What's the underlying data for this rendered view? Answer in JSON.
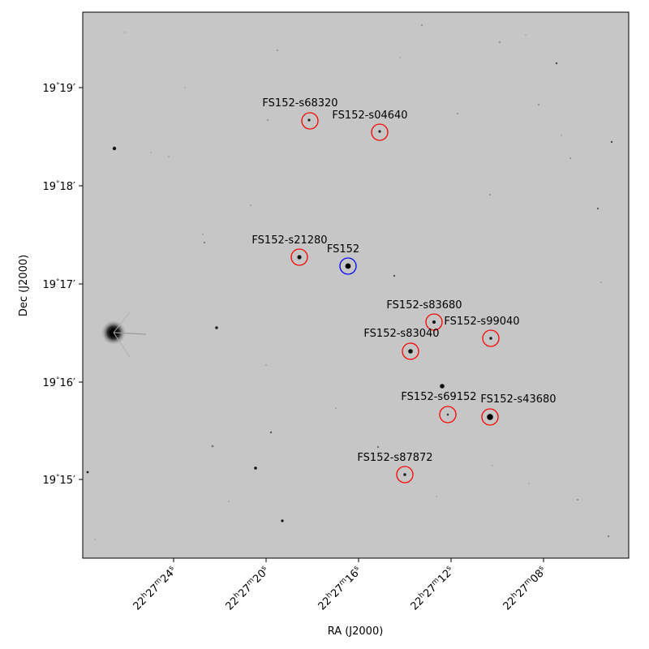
{
  "axes": {
    "xlabel": "RA (J2000)",
    "ylabel": "Dec (J2000)"
  },
  "y_ticks": [
    {
      "deg": "19",
      "min": "19"
    },
    {
      "deg": "19",
      "min": "18"
    },
    {
      "deg": "19",
      "min": "17"
    },
    {
      "deg": "19",
      "min": "16"
    },
    {
      "deg": "19",
      "min": "15"
    }
  ],
  "x_ticks": [
    {
      "h": "22",
      "m": "27",
      "s": "24"
    },
    {
      "h": "22",
      "m": "27",
      "s": "20"
    },
    {
      "h": "22",
      "m": "27",
      "s": "16"
    },
    {
      "h": "22",
      "m": "27",
      "s": "12"
    },
    {
      "h": "22",
      "m": "27",
      "s": "08"
    }
  ],
  "target": {
    "label": "FS152",
    "color": "#0000ff"
  },
  "comparison_color": "#ff0000",
  "comparisons": [
    {
      "label": "FS152-s68320"
    },
    {
      "label": "FS152-s04640"
    },
    {
      "label": "FS152-s21280"
    },
    {
      "label": "FS152-s83680"
    },
    {
      "label": "FS152-s99040"
    },
    {
      "label": "FS152-s83040"
    },
    {
      "label": "FS152-s69152"
    },
    {
      "label": "FS152-s43680"
    },
    {
      "label": "FS152-s87872"
    }
  ]
}
